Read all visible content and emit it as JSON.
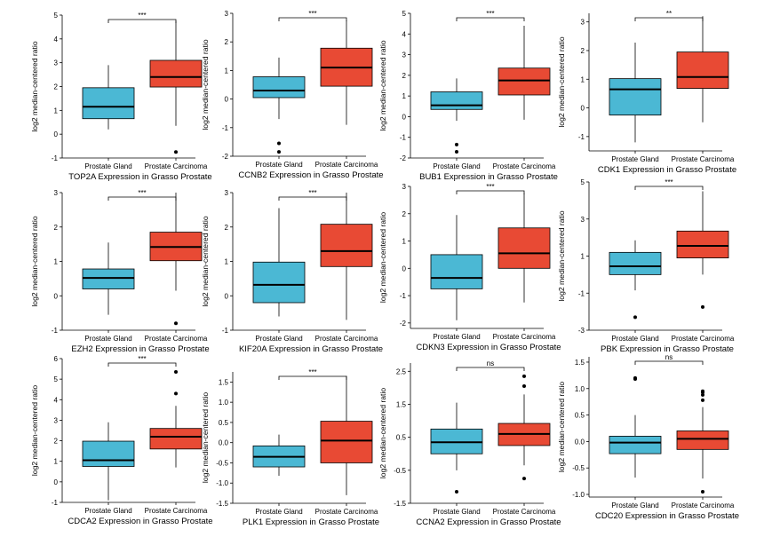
{
  "colors": {
    "gland": "#4bb8d4",
    "carcinoma": "#e84a34",
    "line": "#000000"
  },
  "chart_data": [
    {
      "type": "box",
      "title": "TOP2A Expression in Grasso Prostate",
      "ylabel": "log2 median-centered ratio",
      "categories": [
        "Prostate Gland",
        "Prostate Carcinoma"
      ],
      "ylim": [
        -1,
        5
      ],
      "yticks": [
        "-1",
        "0",
        "1",
        "2",
        "3",
        "4",
        "5"
      ],
      "significance": "***",
      "boxes": [
        {
          "min": 0.2,
          "q1": 0.65,
          "median": 1.15,
          "q3": 1.95,
          "max": 2.9,
          "outliers": []
        },
        {
          "min": 0.35,
          "q1": 1.98,
          "median": 2.4,
          "q3": 3.1,
          "max": 4.75,
          "outliers": [
            -0.75
          ]
        }
      ]
    },
    {
      "type": "box",
      "title": "CCNB2 Expression in Grasso Prostate",
      "ylabel": "log2 median-centered ratio",
      "categories": [
        "Prostate Gland",
        "Prostate Carcinoma"
      ],
      "ylim": [
        -2,
        3
      ],
      "yticks": [
        "-2",
        "-1",
        "0",
        "1",
        "2",
        "3"
      ],
      "significance": "***",
      "boxes": [
        {
          "min": -0.7,
          "q1": 0.05,
          "median": 0.3,
          "q3": 0.78,
          "max": 1.45,
          "outliers": [
            -1.55,
            -1.85
          ]
        },
        {
          "min": -0.9,
          "q1": 0.45,
          "median": 1.1,
          "q3": 1.78,
          "max": 2.75,
          "outliers": []
        }
      ]
    },
    {
      "type": "box",
      "title": "BUB1 Expression in Grasso Prostate",
      "ylabel": "log2 median-centered ratio",
      "categories": [
        "Prostate Gland",
        "Prostate Carcinoma"
      ],
      "ylim": [
        -2,
        5
      ],
      "yticks": [
        "-2",
        "-1",
        "0",
        "1",
        "2",
        "3",
        "4",
        "5"
      ],
      "significance": "***",
      "boxes": [
        {
          "min": -0.2,
          "q1": 0.35,
          "median": 0.55,
          "q3": 1.2,
          "max": 1.85,
          "outliers": [
            -1.35,
            -1.7
          ]
        },
        {
          "min": -0.15,
          "q1": 1.05,
          "median": 1.75,
          "q3": 2.35,
          "max": 4.4,
          "outliers": []
        }
      ]
    },
    {
      "type": "box",
      "title": "CDK1 Expression in Grasso Prostate",
      "ylabel": "log2 median-centered ratio",
      "categories": [
        "Prostate Gland",
        "Prostate Carcinoma"
      ],
      "ylim": [
        -1.5,
        3.3
      ],
      "yticks": [
        "-1",
        "0",
        "1",
        "2",
        "3"
      ],
      "significance": "**",
      "boxes": [
        {
          "min": -1.2,
          "q1": -0.25,
          "median": 0.65,
          "q3": 1.02,
          "max": 2.28,
          "outliers": []
        },
        {
          "min": -0.5,
          "q1": 0.68,
          "median": 1.08,
          "q3": 1.95,
          "max": 3.2,
          "outliers": []
        }
      ]
    },
    {
      "type": "box",
      "title": "EZH2 Expression in Grasso Prostate",
      "ylabel": "log2 median-centered ratio",
      "categories": [
        "Prostate Gland",
        "Prostate Carcinoma"
      ],
      "ylim": [
        -1,
        3
      ],
      "yticks": [
        "-1",
        "0",
        "1",
        "2",
        "3"
      ],
      "significance": "***",
      "boxes": [
        {
          "min": -0.55,
          "q1": 0.2,
          "median": 0.52,
          "q3": 0.78,
          "max": 1.55,
          "outliers": []
        },
        {
          "min": 0.15,
          "q1": 1.02,
          "median": 1.42,
          "q3": 1.85,
          "max": 3.0,
          "outliers": [
            -0.8
          ]
        }
      ]
    },
    {
      "type": "box",
      "title": "KIF20A Expression in Grasso Prostate",
      "ylabel": "log2 median-centered ratio",
      "categories": [
        "Prostate Gland",
        "Prostate Carcinoma"
      ],
      "ylim": [
        -1,
        3
      ],
      "yticks": [
        "-1",
        "0",
        "1",
        "2",
        "3"
      ],
      "significance": "***",
      "boxes": [
        {
          "min": -0.6,
          "q1": -0.2,
          "median": 0.32,
          "q3": 0.98,
          "max": 2.55,
          "outliers": []
        },
        {
          "min": -0.7,
          "q1": 0.85,
          "median": 1.3,
          "q3": 2.08,
          "max": 3.0,
          "outliers": []
        }
      ]
    },
    {
      "type": "box",
      "title": "CDKN3 Expression in Grasso Prostate",
      "ylabel": "log2 median-centered ratio",
      "categories": [
        "Prostate Gland",
        "Prostate Carcinoma"
      ],
      "ylim": [
        -2.2,
        3
      ],
      "yticks": [
        "-2",
        "-1",
        "0",
        "1",
        "2",
        "3"
      ],
      "significance": "***",
      "boxes": [
        {
          "min": -1.9,
          "q1": -0.75,
          "median": -0.35,
          "q3": 0.5,
          "max": 1.95,
          "outliers": []
        },
        {
          "min": -1.25,
          "q1": 0.0,
          "median": 0.55,
          "q3": 1.48,
          "max": 2.75,
          "outliers": []
        }
      ]
    },
    {
      "type": "box",
      "title": "PBK Expression in Grasso Prostate",
      "ylabel": "log2 median-centered ratio",
      "categories": [
        "Prostate Gland",
        "Prostate Carcinoma"
      ],
      "ylim": [
        -3,
        5
      ],
      "yticks": [
        "-3",
        "-1",
        "1",
        "3",
        "5"
      ],
      "significance": "***",
      "boxes": [
        {
          "min": -0.85,
          "q1": 0.0,
          "median": 0.45,
          "q3": 1.2,
          "max": 1.85,
          "outliers": [
            -2.3
          ]
        },
        {
          "min": 0.0,
          "q1": 0.9,
          "median": 1.55,
          "q3": 2.35,
          "max": 4.5,
          "outliers": [
            -1.75
          ]
        }
      ]
    },
    {
      "type": "box",
      "title": "CDCA2 Expression in Grasso Prostate",
      "ylabel": "log2 median-centered ratio",
      "categories": [
        "Prostate Gland",
        "Prostate Carcinoma"
      ],
      "ylim": [
        -1,
        6
      ],
      "yticks": [
        "-1",
        "0",
        "1",
        "2",
        "3",
        "4",
        "5",
        "6"
      ],
      "significance": "***",
      "boxes": [
        {
          "min": -0.9,
          "q1": 0.75,
          "median": 1.05,
          "q3": 1.98,
          "max": 2.9,
          "outliers": []
        },
        {
          "min": 0.7,
          "q1": 1.6,
          "median": 2.2,
          "q3": 2.6,
          "max": 3.7,
          "outliers": [
            4.3,
            5.35
          ]
        }
      ]
    },
    {
      "type": "box",
      "title": "PLK1 Expression in Grasso Prostate",
      "ylabel": "log2 median-centered ratio",
      "categories": [
        "Prostate Gland",
        "Prostate Carcinoma"
      ],
      "ylim": [
        -1.5,
        1.75
      ],
      "yticks": [
        "-1.5",
        "-1.0",
        "-0.5",
        "0.0",
        "0.5",
        "1.0",
        "1.5"
      ],
      "significance": "***",
      "boxes": [
        {
          "min": -0.82,
          "q1": -0.6,
          "median": -0.35,
          "q3": -0.08,
          "max": 0.2,
          "outliers": []
        },
        {
          "min": -1.3,
          "q1": -0.5,
          "median": 0.05,
          "q3": 0.53,
          "max": 1.65,
          "outliers": []
        }
      ]
    },
    {
      "type": "box",
      "title": "CCNA2 Expression in Grasso Prostate",
      "ylabel": "log2 median-centered ratio",
      "categories": [
        "Prostate Gland",
        "Prostate Carcinoma"
      ],
      "ylim": [
        -1.5,
        2.75
      ],
      "yticks": [
        "-1.5",
        "-0.5",
        "0.5",
        "1.5",
        "2.5"
      ],
      "significance": "ns",
      "boxes": [
        {
          "min": -0.5,
          "q1": 0.0,
          "median": 0.35,
          "q3": 0.75,
          "max": 1.55,
          "outliers": [
            -1.15
          ]
        },
        {
          "min": -0.35,
          "q1": 0.25,
          "median": 0.6,
          "q3": 0.92,
          "max": 1.8,
          "outliers": [
            -0.75,
            2.05,
            2.35
          ]
        }
      ]
    },
    {
      "type": "box",
      "title": "CDC20 Expression in Grasso Prostate",
      "ylabel": "log2 median-centered ratio",
      "categories": [
        "Prostate Gland",
        "Prostate Carcinoma"
      ],
      "ylim": [
        -1.05,
        1.6
      ],
      "yticks": [
        "-1.0",
        "-0.5",
        "0.0",
        "0.5",
        "1.0",
        "1.5"
      ],
      "significance": "ns",
      "boxes": [
        {
          "min": -0.68,
          "q1": -0.23,
          "median": -0.02,
          "q3": 0.1,
          "max": 0.5,
          "outliers": [
            1.18,
            1.2
          ]
        },
        {
          "min": -0.7,
          "q1": -0.15,
          "median": 0.05,
          "q3": 0.2,
          "max": 0.65,
          "outliers": [
            -0.95,
            0.78,
            0.88,
            0.93,
            0.95
          ]
        }
      ]
    }
  ]
}
